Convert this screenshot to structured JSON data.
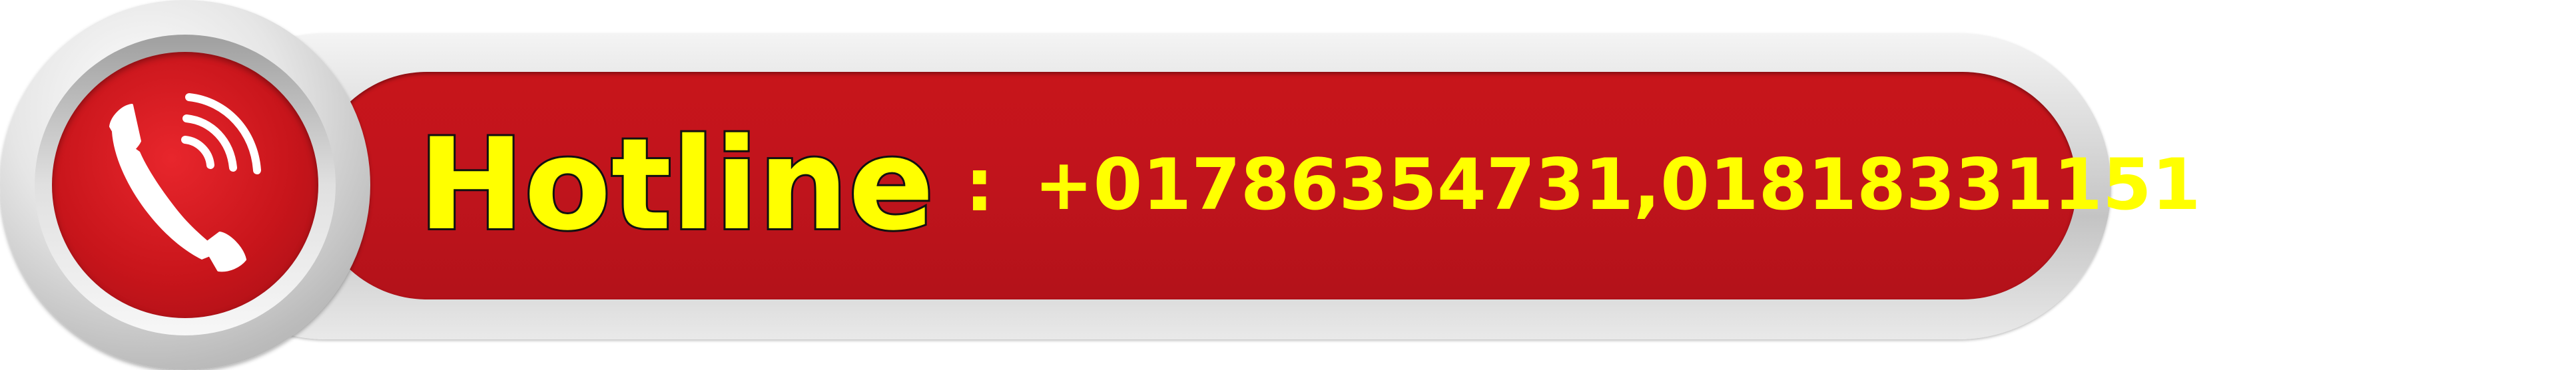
{
  "banner": {
    "label": "Hotline",
    "separator": ":",
    "numbers": "+01786354731,01818331151"
  },
  "icons": {
    "phone": "phone-icon"
  },
  "colors": {
    "bar_red": "#c0141c",
    "text_yellow": "#ffff00",
    "frame_silver": "#d0d0d0"
  }
}
